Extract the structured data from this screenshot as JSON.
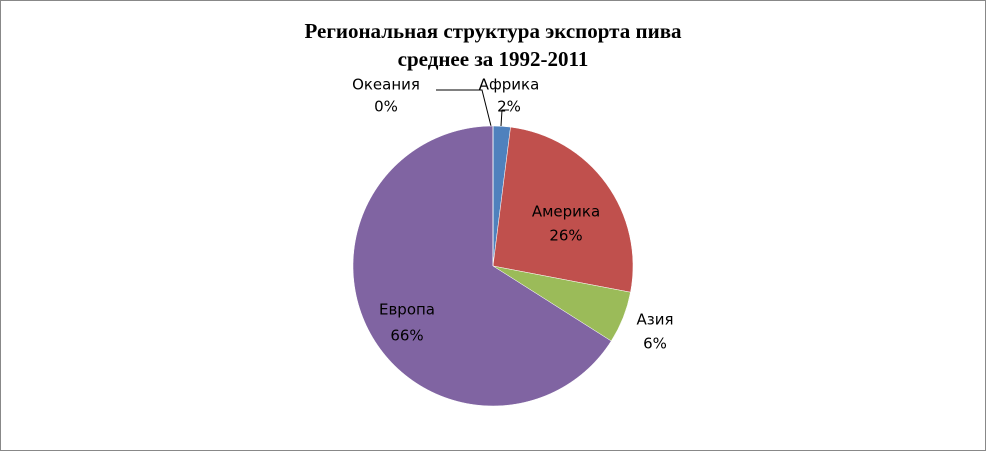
{
  "chart_data": {
    "type": "pie",
    "title": "Региональная структура экспорта пива",
    "subtitle": "среднее за 1992-2011",
    "categories": [
      "Африка",
      "Америка",
      "Азия",
      "Европа",
      "Океания"
    ],
    "values": [
      2,
      26,
      6,
      66,
      0
    ],
    "value_labels": [
      "2%",
      "26%",
      "6%",
      "66%",
      "0%"
    ],
    "colors": [
      "#4f81bd",
      "#c0504d",
      "#9bbb59",
      "#8064a2",
      "#4bacc6"
    ]
  }
}
